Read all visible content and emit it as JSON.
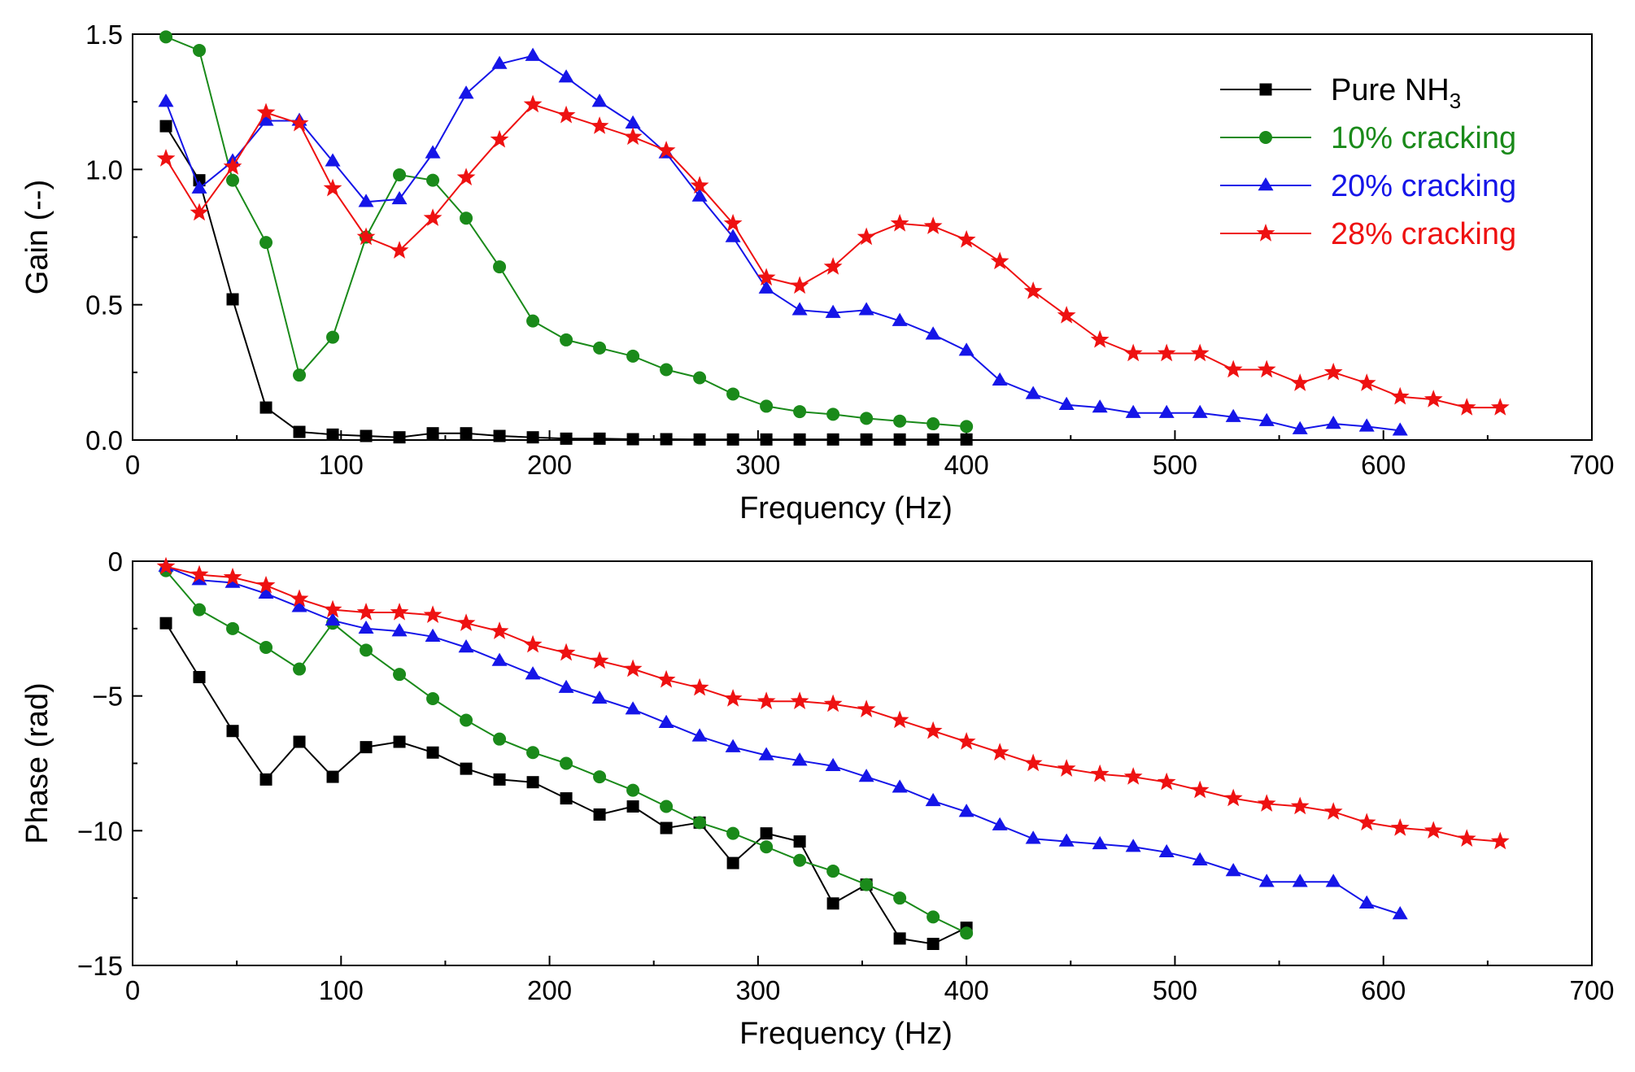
{
  "chart_data": [
    {
      "type": "line",
      "id": "gain",
      "xlabel": "Frequency (Hz)",
      "ylabel": "Gain (--)",
      "xlim": [
        0,
        700
      ],
      "ylim": [
        0,
        1.5
      ],
      "xticks": [
        0,
        100,
        200,
        300,
        400,
        500,
        600,
        700
      ],
      "yticks": [
        0.0,
        0.5,
        1.0,
        1.5
      ],
      "ytick_labels": [
        "0.0",
        "0.5",
        "1.0",
        "1.5"
      ],
      "legend": {
        "position": "top-right",
        "entries": [
          {
            "label": "Pure NH",
            "sub": "3",
            "series": "pure"
          },
          {
            "label": "10% cracking",
            "series": "c10"
          },
          {
            "label": "20% cracking",
            "series": "c20"
          },
          {
            "label": "28% cracking",
            "series": "c28"
          }
        ]
      },
      "series": [
        {
          "key": "pure",
          "name": "Pure NH3",
          "color": "#000000",
          "marker": "square",
          "x": [
            16,
            32,
            48,
            64,
            80,
            96,
            112,
            128,
            144,
            160,
            176,
            192,
            208,
            224,
            240,
            256,
            272,
            288,
            304,
            320,
            336,
            352,
            368,
            384,
            400
          ],
          "y": [
            1.16,
            0.96,
            0.52,
            0.12,
            0.03,
            0.02,
            0.015,
            0.01,
            0.025,
            0.025,
            0.015,
            0.01,
            0.005,
            0.005,
            0.003,
            0.003,
            0.002,
            0.002,
            0.002,
            0.002,
            0.002,
            0.002,
            0.002,
            0.002,
            0.002
          ]
        },
        {
          "key": "c10",
          "name": "10% cracking",
          "color": "#1a8a1a",
          "marker": "circle",
          "x": [
            16,
            32,
            48,
            64,
            80,
            96,
            112,
            128,
            144,
            160,
            176,
            192,
            208,
            224,
            240,
            256,
            272,
            288,
            304,
            320,
            336,
            352,
            368,
            384,
            400
          ],
          "y": [
            1.49,
            1.44,
            0.96,
            0.73,
            0.24,
            0.38,
            0.75,
            0.98,
            0.96,
            0.82,
            0.64,
            0.44,
            0.37,
            0.34,
            0.31,
            0.26,
            0.23,
            0.17,
            0.125,
            0.105,
            0.095,
            0.08,
            0.07,
            0.06,
            0.05
          ]
        },
        {
          "key": "c20",
          "name": "20% cracking",
          "color": "#1515e8",
          "marker": "triangle",
          "x": [
            16,
            32,
            48,
            64,
            80,
            96,
            112,
            128,
            144,
            160,
            176,
            192,
            208,
            224,
            240,
            256,
            272,
            288,
            304,
            320,
            336,
            352,
            368,
            384,
            400,
            416,
            432,
            448,
            464,
            480,
            496,
            512,
            528,
            544,
            560,
            576,
            592,
            608
          ],
          "y": [
            1.25,
            0.93,
            1.03,
            1.18,
            1.18,
            1.03,
            0.88,
            0.89,
            1.06,
            1.28,
            1.39,
            1.42,
            1.34,
            1.25,
            1.17,
            1.06,
            0.9,
            0.75,
            0.56,
            0.48,
            0.47,
            0.48,
            0.44,
            0.39,
            0.33,
            0.22,
            0.17,
            0.13,
            0.12,
            0.1,
            0.1,
            0.1,
            0.085,
            0.07,
            0.04,
            0.06,
            0.05,
            0.035
          ]
        },
        {
          "key": "c28",
          "name": "28% cracking",
          "color": "#ee1111",
          "marker": "star",
          "x": [
            16,
            32,
            48,
            64,
            80,
            96,
            112,
            128,
            144,
            160,
            176,
            192,
            208,
            224,
            240,
            256,
            272,
            288,
            304,
            320,
            336,
            352,
            368,
            384,
            400,
            416,
            432,
            448,
            464,
            480,
            496,
            512,
            528,
            544,
            560,
            576,
            592,
            608,
            624,
            640,
            656
          ],
          "y": [
            1.04,
            0.84,
            1.01,
            1.21,
            1.17,
            0.93,
            0.75,
            0.7,
            0.82,
            0.97,
            1.11,
            1.24,
            1.2,
            1.16,
            1.12,
            1.07,
            0.94,
            0.8,
            0.6,
            0.57,
            0.64,
            0.75,
            0.8,
            0.79,
            0.74,
            0.66,
            0.55,
            0.46,
            0.37,
            0.32,
            0.32,
            0.32,
            0.26,
            0.26,
            0.21,
            0.25,
            0.21,
            0.16,
            0.15,
            0.12,
            0.12
          ]
        }
      ]
    },
    {
      "type": "line",
      "id": "phase",
      "xlabel": "Frequency (Hz)",
      "ylabel": "Phase (rad)",
      "xlim": [
        0,
        700
      ],
      "ylim": [
        -15,
        0
      ],
      "xticks": [
        0,
        100,
        200,
        300,
        400,
        500,
        600,
        700
      ],
      "yticks": [
        -15,
        -10,
        -5,
        0
      ],
      "ytick_labels": [
        "−15",
        "−10",
        "−5",
        "0"
      ],
      "series": [
        {
          "key": "pure",
          "name": "Pure NH3",
          "color": "#000000",
          "marker": "square",
          "x": [
            16,
            32,
            48,
            64,
            80,
            96,
            112,
            128,
            144,
            160,
            176,
            192,
            208,
            224,
            240,
            256,
            272,
            288,
            304,
            320,
            336,
            352,
            368,
            384,
            400
          ],
          "y": [
            -2.3,
            -4.3,
            -6.3,
            -8.1,
            -6.7,
            -8.0,
            -6.9,
            -6.7,
            -7.1,
            -7.7,
            -8.1,
            -8.2,
            -8.8,
            -9.4,
            -9.1,
            -9.9,
            -9.7,
            -11.2,
            -10.1,
            -10.4,
            -12.7,
            -12.0,
            -14.0,
            -14.2,
            -13.6
          ]
        },
        {
          "key": "c10",
          "name": "10% cracking",
          "color": "#1a8a1a",
          "marker": "circle",
          "x": [
            16,
            32,
            48,
            64,
            80,
            96,
            112,
            128,
            144,
            160,
            176,
            192,
            208,
            224,
            240,
            256,
            272,
            288,
            304,
            320,
            336,
            352,
            368,
            384,
            400
          ],
          "y": [
            -0.35,
            -1.8,
            -2.5,
            -3.2,
            -4.0,
            -2.3,
            -3.3,
            -4.2,
            -5.1,
            -5.9,
            -6.6,
            -7.1,
            -7.5,
            -8.0,
            -8.5,
            -9.1,
            -9.7,
            -10.1,
            -10.6,
            -11.1,
            -11.5,
            -12.0,
            -12.5,
            -13.2,
            -13.8
          ]
        },
        {
          "key": "c20",
          "name": "20% cracking",
          "color": "#1515e8",
          "marker": "triangle",
          "x": [
            16,
            32,
            48,
            64,
            80,
            96,
            112,
            128,
            144,
            160,
            176,
            192,
            208,
            224,
            240,
            256,
            272,
            288,
            304,
            320,
            336,
            352,
            368,
            384,
            400,
            416,
            432,
            448,
            464,
            480,
            496,
            512,
            528,
            544,
            560,
            576,
            592,
            608
          ],
          "y": [
            -0.2,
            -0.7,
            -0.8,
            -1.2,
            -1.7,
            -2.2,
            -2.5,
            -2.6,
            -2.8,
            -3.2,
            -3.7,
            -4.2,
            -4.7,
            -5.1,
            -5.5,
            -6.0,
            -6.5,
            -6.9,
            -7.2,
            -7.4,
            -7.6,
            -8.0,
            -8.4,
            -8.9,
            -9.3,
            -9.8,
            -10.3,
            -10.4,
            -10.5,
            -10.6,
            -10.8,
            -11.1,
            -11.5,
            -11.9,
            -11.9,
            -11.9,
            -12.7,
            -13.1
          ]
        },
        {
          "key": "c28",
          "name": "28% cracking",
          "color": "#ee1111",
          "marker": "star",
          "x": [
            16,
            32,
            48,
            64,
            80,
            96,
            112,
            128,
            144,
            160,
            176,
            192,
            208,
            224,
            240,
            256,
            272,
            288,
            304,
            320,
            336,
            352,
            368,
            384,
            400,
            416,
            432,
            448,
            464,
            480,
            496,
            512,
            528,
            544,
            560,
            576,
            592,
            608,
            624,
            640,
            656
          ],
          "y": [
            -0.2,
            -0.5,
            -0.6,
            -0.9,
            -1.4,
            -1.8,
            -1.9,
            -1.9,
            -2.0,
            -2.3,
            -2.6,
            -3.1,
            -3.4,
            -3.7,
            -4.0,
            -4.4,
            -4.7,
            -5.1,
            -5.2,
            -5.2,
            -5.3,
            -5.5,
            -5.9,
            -6.3,
            -6.7,
            -7.1,
            -7.5,
            -7.7,
            -7.9,
            -8.0,
            -8.2,
            -8.5,
            -8.8,
            -9.0,
            -9.1,
            -9.3,
            -9.7,
            -9.9,
            -10.0,
            -10.3,
            -10.4
          ]
        }
      ]
    }
  ]
}
